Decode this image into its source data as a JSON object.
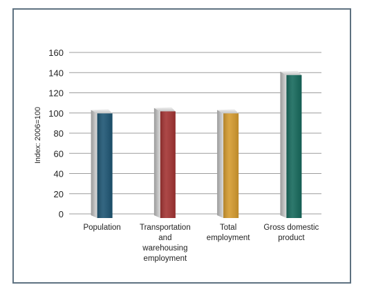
{
  "chart_data": {
    "type": "bar",
    "title": "",
    "xlabel": "",
    "ylabel": "Index: 2006=100",
    "ylim": [
      0,
      160
    ],
    "yticks": [
      0,
      20,
      40,
      60,
      80,
      100,
      120,
      140,
      160
    ],
    "grid": true,
    "categories": [
      [
        "Population"
      ],
      [
        "Transportation",
        "and",
        "warehousing",
        "employment"
      ],
      [
        "Total",
        "employment"
      ],
      [
        "Gross domestic",
        "product"
      ]
    ],
    "values": [
      103,
      105,
      103,
      141
    ],
    "colors": [
      "#1d5573",
      "#a33332",
      "#d59b2e",
      "#16695c"
    ]
  }
}
